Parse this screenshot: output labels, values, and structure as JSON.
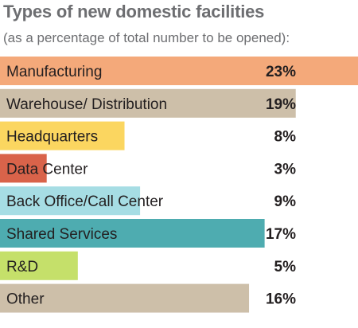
{
  "header": {
    "title": "Types of new domestic facilities",
    "subtitle": "(as a percentage of total number to be opened):"
  },
  "chart_data": {
    "type": "bar",
    "orientation": "horizontal",
    "title": "Types of new domestic facilities",
    "subtitle": "(as a percentage of total number to be opened):",
    "xlabel": "",
    "ylabel": "",
    "categories": [
      "Manufacturing",
      "Warehouse/ Distribution",
      "Headquarters",
      "Data Center",
      "Back Office/Call Center",
      "Shared Services",
      "R&D",
      "Other"
    ],
    "values": [
      23,
      19,
      8,
      3,
      9,
      17,
      5,
      16
    ],
    "value_labels": [
      "23%",
      "19%",
      "8%",
      "3%",
      "9%",
      "17%",
      "5%",
      "16%"
    ],
    "colors": [
      "#f4a97a",
      "#cdbfa9",
      "#fbd660",
      "#d9634a",
      "#a6dde4",
      "#4eacb0",
      "#c5e06a",
      "#cdbfa9"
    ],
    "xlim": [
      0,
      23
    ],
    "grid": false,
    "legend": "none"
  }
}
